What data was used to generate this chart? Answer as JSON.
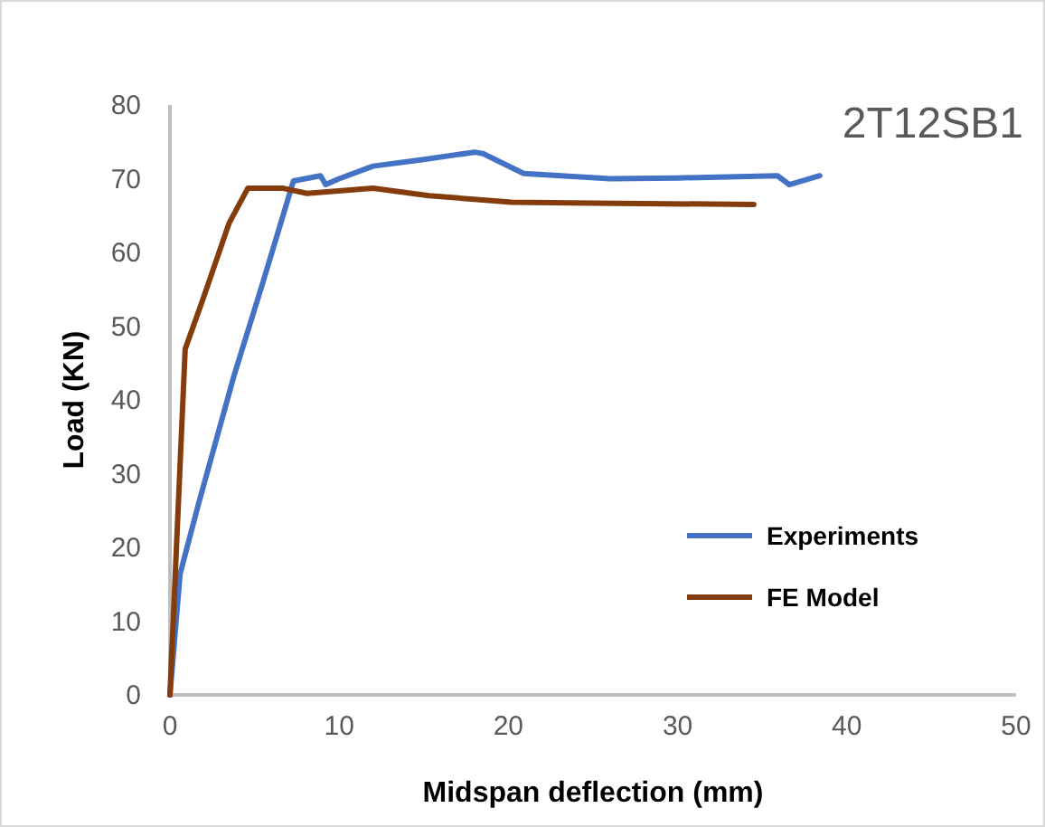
{
  "chart_data": {
    "type": "line",
    "title": "2T12SB1",
    "xlabel": "Midspan deflection (mm)",
    "ylabel": "Load (KN)",
    "xlim": [
      0,
      50
    ],
    "ylim": [
      0,
      80
    ],
    "xticks": [
      0,
      10,
      20,
      30,
      40,
      50
    ],
    "yticks": [
      0,
      10,
      20,
      30,
      40,
      50,
      60,
      70,
      80
    ],
    "grid": false,
    "legend": "right",
    "series": [
      {
        "name": "Experiments",
        "color": "#4472c4",
        "x": [
          0,
          0.6,
          1.7,
          3.8,
          5.5,
          7.3,
          8.9,
          9.2,
          10,
          12,
          15,
          18,
          18.5,
          20.9,
          26,
          30,
          35.9,
          36.6,
          38.4
        ],
        "values": [
          0,
          16.4,
          26,
          43.4,
          56,
          69.7,
          70.4,
          69.2,
          70,
          71.7,
          72.6,
          73.6,
          73.4,
          70.7,
          70,
          70.1,
          70.4,
          69.2,
          70.4
        ]
      },
      {
        "name": "FE Model",
        "color": "#843c0c",
        "x": [
          0,
          0.9,
          2,
          3.5,
          4.6,
          6.7,
          8.1,
          12,
          15.3,
          20.2,
          25,
          34.5
        ],
        "values": [
          0,
          46.9,
          54,
          64,
          68.7,
          68.7,
          68,
          68.7,
          67.7,
          66.8,
          66.7,
          66.5
        ]
      }
    ]
  }
}
